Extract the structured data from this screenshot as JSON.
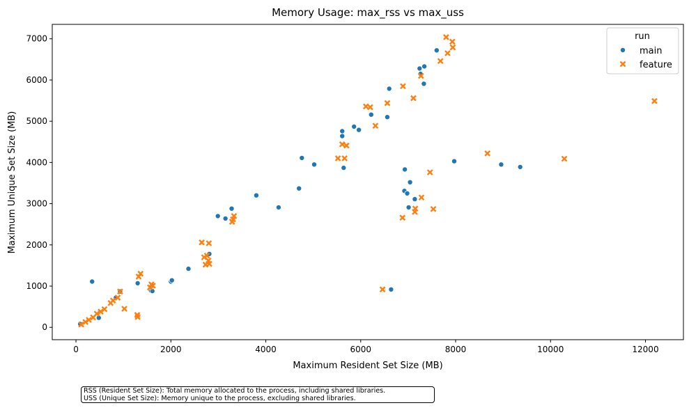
{
  "chart_data": {
    "type": "scatter",
    "title": "Memory Usage: max_rss vs max_uss",
    "xlabel": "Maximum Resident Set Size (MB)",
    "ylabel": "Maximum Unique Set Size (MB)",
    "xlim": [
      -500,
      12800
    ],
    "ylim": [
      -300,
      7350
    ],
    "xticks": [
      0,
      2000,
      4000,
      6000,
      8000,
      10000,
      12000
    ],
    "yticks": [
      0,
      1000,
      2000,
      3000,
      4000,
      5000,
      6000,
      7000
    ],
    "grid": false,
    "legend": {
      "title": "run",
      "placement": "top-right"
    },
    "series": [
      {
        "name": "main",
        "marker": "circle",
        "color": "#1f77b4",
        "points": [
          [
            90,
            80
          ],
          [
            340,
            1110
          ],
          [
            480,
            230
          ],
          [
            840,
            720
          ],
          [
            930,
            870
          ],
          [
            1300,
            1070
          ],
          [
            1560,
            920
          ],
          [
            1580,
            890
          ],
          [
            1590,
            960
          ],
          [
            1600,
            1010
          ],
          [
            1610,
            880
          ],
          [
            2000,
            1110
          ],
          [
            2020,
            1140
          ],
          [
            2370,
            1420
          ],
          [
            2810,
            1780
          ],
          [
            2990,
            2700
          ],
          [
            3150,
            2640
          ],
          [
            3280,
            2880
          ],
          [
            3800,
            3200
          ],
          [
            4270,
            2910
          ],
          [
            4700,
            3370
          ],
          [
            4760,
            4110
          ],
          [
            5020,
            3950
          ],
          [
            5610,
            4640
          ],
          [
            5610,
            4760
          ],
          [
            5640,
            3870
          ],
          [
            5860,
            4870
          ],
          [
            5960,
            4790
          ],
          [
            6220,
            5160
          ],
          [
            6560,
            5100
          ],
          [
            6600,
            5790
          ],
          [
            6640,
            920
          ],
          [
            6920,
            3310
          ],
          [
            6930,
            3830
          ],
          [
            6980,
            3250
          ],
          [
            7010,
            2910
          ],
          [
            7040,
            3520
          ],
          [
            7140,
            3110
          ],
          [
            7240,
            6280
          ],
          [
            7260,
            6150
          ],
          [
            7330,
            5910
          ],
          [
            7340,
            6330
          ],
          [
            7600,
            6720
          ],
          [
            7970,
            4030
          ],
          [
            8960,
            3950
          ],
          [
            9360,
            3890
          ]
        ]
      },
      {
        "name": "feature",
        "marker": "x",
        "color": "#ff7f0e",
        "points": [
          [
            110,
            70
          ],
          [
            200,
            130
          ],
          [
            270,
            180
          ],
          [
            360,
            240
          ],
          [
            440,
            330
          ],
          [
            520,
            380
          ],
          [
            600,
            440
          ],
          [
            730,
            590
          ],
          [
            780,
            650
          ],
          [
            880,
            720
          ],
          [
            930,
            870
          ],
          [
            1020,
            450
          ],
          [
            1290,
            300
          ],
          [
            1300,
            250
          ],
          [
            1320,
            1230
          ],
          [
            1360,
            1300
          ],
          [
            1560,
            970
          ],
          [
            1590,
            1040
          ],
          [
            1620,
            1010
          ],
          [
            2650,
            2060
          ],
          [
            2700,
            1700
          ],
          [
            2730,
            1520
          ],
          [
            2760,
            1740
          ],
          [
            2790,
            1620
          ],
          [
            2800,
            2040
          ],
          [
            2810,
            1540
          ],
          [
            3290,
            2560
          ],
          [
            3310,
            2620
          ],
          [
            3330,
            2700
          ],
          [
            5520,
            4100
          ],
          [
            5610,
            4440
          ],
          [
            5660,
            4100
          ],
          [
            5700,
            4410
          ],
          [
            6110,
            5360
          ],
          [
            6200,
            5340
          ],
          [
            6310,
            4890
          ],
          [
            6460,
            920
          ],
          [
            6560,
            5440
          ],
          [
            6880,
            2660
          ],
          [
            6890,
            5850
          ],
          [
            7110,
            5560
          ],
          [
            7140,
            2800
          ],
          [
            7150,
            2880
          ],
          [
            7270,
            6100
          ],
          [
            7280,
            3150
          ],
          [
            7460,
            3760
          ],
          [
            7530,
            2870
          ],
          [
            7680,
            6460
          ],
          [
            7800,
            7040
          ],
          [
            7830,
            6650
          ],
          [
            7930,
            6930
          ],
          [
            7940,
            6790
          ],
          [
            8670,
            4220
          ],
          [
            10290,
            4090
          ],
          [
            12190,
            5490
          ]
        ]
      }
    ]
  },
  "notes": {
    "line1": "RSS (Resident Set Size): Total memory allocated to the process, including shared libraries.",
    "line2": "USS (Unique Set Size): Memory unique to the process, excluding shared libraries."
  }
}
